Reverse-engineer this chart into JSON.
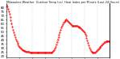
{
  "title": "Milwaukee Weather  Outdoor Temp (vs)  Heat Index per Minute (Last 24 Hours)",
  "line_color": "#ff0000",
  "bg_color": "#ffffff",
  "grid_color": "#999999",
  "yticks": [
    20,
    25,
    30,
    35,
    40,
    45,
    50,
    55,
    60,
    65,
    70,
    75,
    80
  ],
  "ylim": [
    18,
    84
  ],
  "xlim": [
    0,
    143
  ],
  "data_y": [
    82,
    80,
    78,
    75,
    72,
    68,
    64,
    60,
    56,
    52,
    49,
    46,
    43,
    40,
    38,
    36,
    34,
    32,
    31,
    30,
    29,
    28,
    27,
    27,
    26,
    26,
    26,
    25,
    25,
    25,
    25,
    25,
    24,
    24,
    24,
    24,
    24,
    24,
    24,
    24,
    24,
    24,
    24,
    24,
    24,
    24,
    24,
    24,
    24,
    24,
    24,
    24,
    24,
    24,
    24,
    24,
    24,
    24,
    24,
    24,
    24,
    24,
    24,
    24,
    25,
    26,
    27,
    29,
    31,
    34,
    37,
    40,
    43,
    46,
    49,
    52,
    55,
    57,
    59,
    61,
    62,
    63,
    64,
    65,
    64,
    63,
    62,
    61,
    60,
    59,
    58,
    57,
    57,
    57,
    57,
    57,
    57,
    57,
    57,
    56,
    56,
    55,
    55,
    54,
    53,
    52,
    51,
    50,
    49,
    47,
    45,
    42,
    39,
    36,
    33,
    30,
    28,
    26,
    25,
    24,
    24,
    24,
    24,
    24,
    25,
    26,
    27,
    28,
    29,
    30,
    31,
    32,
    33,
    34,
    35,
    36,
    37,
    37,
    38,
    38,
    38,
    38,
    38,
    38
  ],
  "vgrid_positions": [
    0,
    18,
    36,
    54,
    72,
    90,
    108,
    126,
    143
  ],
  "xtick_positions": [
    0,
    18,
    36,
    54,
    72,
    90,
    108,
    126,
    143
  ]
}
